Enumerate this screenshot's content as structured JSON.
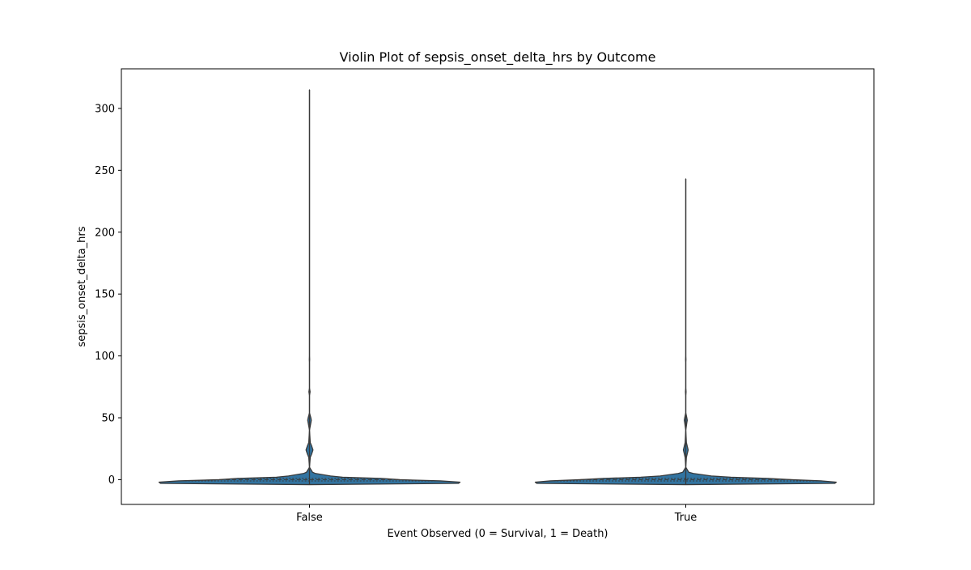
{
  "chart_data": {
    "type": "violin",
    "title": "Violin Plot of sepsis_onset_delta_hrs by Outcome",
    "xlabel": "Event Observed (0 = Survival, 1 = Death)",
    "ylabel": "sepsis_onset_delta_hrs",
    "categories": [
      "False",
      "True"
    ],
    "ylim": [
      -20,
      332
    ],
    "yticks": [
      0,
      50,
      100,
      150,
      200,
      250,
      300
    ],
    "grid": false,
    "legend": "none",
    "violin_color": "#3274a1",
    "edge_color": "#3a3a3a",
    "violins": [
      {
        "category": "False",
        "min": -4,
        "max": 315,
        "median": 0,
        "q1": -1,
        "q3": 1,
        "density": [
          {
            "y": -4,
            "w": 0.0
          },
          {
            "y": -3,
            "w": 0.99
          },
          {
            "y": -2,
            "w": 1.0
          },
          {
            "y": -1,
            "w": 0.87
          },
          {
            "y": 0,
            "w": 0.6
          },
          {
            "y": 1,
            "w": 0.48
          },
          {
            "y": 2,
            "w": 0.22
          },
          {
            "y": 3,
            "w": 0.14
          },
          {
            "y": 5,
            "w": 0.04
          },
          {
            "y": 6,
            "w": 0.02
          },
          {
            "y": 10,
            "w": 0.0
          },
          {
            "y": 18,
            "w": 0.005
          },
          {
            "y": 21,
            "w": 0.015
          },
          {
            "y": 24,
            "w": 0.023
          },
          {
            "y": 27,
            "w": 0.015
          },
          {
            "y": 30,
            "w": 0.005
          },
          {
            "y": 40,
            "w": 0.0
          },
          {
            "y": 46,
            "w": 0.009
          },
          {
            "y": 48,
            "w": 0.012
          },
          {
            "y": 50,
            "w": 0.009
          },
          {
            "y": 54,
            "w": 0.0
          },
          {
            "y": 68,
            "w": 0.0
          },
          {
            "y": 71,
            "w": 0.004
          },
          {
            "y": 74,
            "w": 0.0
          },
          {
            "y": 95,
            "w": 0.0
          },
          {
            "y": 97,
            "w": 0.001
          },
          {
            "y": 100,
            "w": 0.0
          },
          {
            "y": 315,
            "w": 0.0
          }
        ]
      },
      {
        "category": "True",
        "min": -4,
        "max": 243,
        "median": 0,
        "q1": -1,
        "q3": 1,
        "density": [
          {
            "y": -4,
            "w": 0.0
          },
          {
            "y": -3,
            "w": 0.99
          },
          {
            "y": -2,
            "w": 1.0
          },
          {
            "y": -1,
            "w": 0.9
          },
          {
            "y": 0,
            "w": 0.7
          },
          {
            "y": 1,
            "w": 0.55
          },
          {
            "y": 2,
            "w": 0.3
          },
          {
            "y": 3,
            "w": 0.17
          },
          {
            "y": 5,
            "w": 0.05
          },
          {
            "y": 6,
            "w": 0.02
          },
          {
            "y": 10,
            "w": 0.0
          },
          {
            "y": 18,
            "w": 0.004
          },
          {
            "y": 21,
            "w": 0.01
          },
          {
            "y": 24,
            "w": 0.016
          },
          {
            "y": 27,
            "w": 0.01
          },
          {
            "y": 30,
            "w": 0.004
          },
          {
            "y": 40,
            "w": 0.0
          },
          {
            "y": 46,
            "w": 0.007
          },
          {
            "y": 48,
            "w": 0.01
          },
          {
            "y": 50,
            "w": 0.007
          },
          {
            "y": 54,
            "w": 0.0
          },
          {
            "y": 68,
            "w": 0.0
          },
          {
            "y": 71,
            "w": 0.002
          },
          {
            "y": 74,
            "w": 0.0
          },
          {
            "y": 95,
            "w": 0.0
          },
          {
            "y": 97,
            "w": 0.001
          },
          {
            "y": 100,
            "w": 0.0
          },
          {
            "y": 243,
            "w": 0.0
          }
        ]
      }
    ]
  }
}
